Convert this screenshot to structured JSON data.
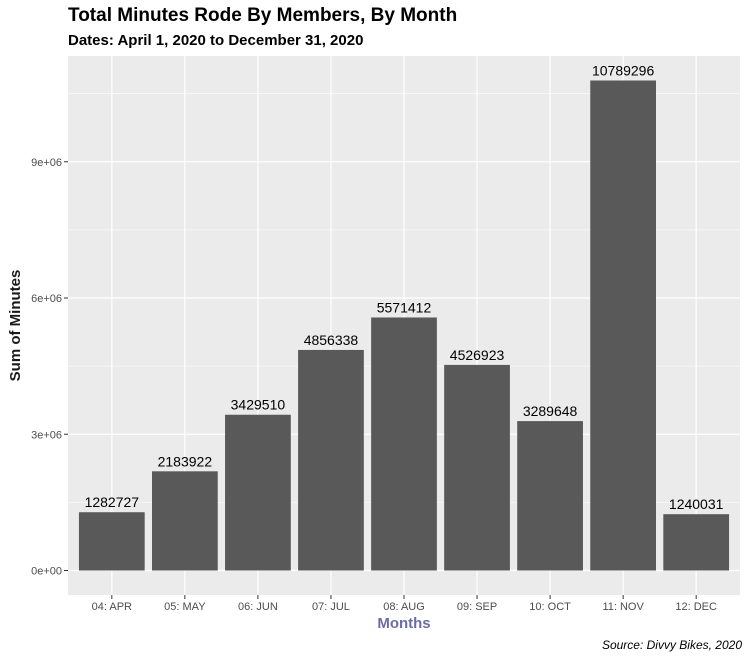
{
  "chart_data": {
    "type": "bar",
    "title": "Total Minutes Rode By Members, By Month",
    "subtitle": "Dates: April 1, 2020 to December 31, 2020",
    "caption": "Source: Divvy Bikes, 2020",
    "xlabel": "Months",
    "ylabel": "Sum of Minutes",
    "categories": [
      "04: APR",
      "05: MAY",
      "06: JUN",
      "07: JUL",
      "08: AUG",
      "09: SEP",
      "10: OCT",
      "11: NOV",
      "12: DEC"
    ],
    "values": [
      1282727,
      2183922,
      3429510,
      4856338,
      5571412,
      4526923,
      3289648,
      10789296,
      1240031
    ],
    "data_labels": [
      "1282727",
      "2183922",
      "3429510",
      "4856338",
      "5571412",
      "4526923",
      "3289648",
      "10789296",
      "1240031"
    ],
    "yticks": [
      0,
      3000000,
      6000000,
      9000000
    ],
    "ytick_labels": [
      "0e+00",
      "3e+06",
      "6e+06",
      "9e+06"
    ],
    "ylim": [
      -539465,
      11328761
    ],
    "grid": true,
    "colors": {
      "bar": "#595959",
      "panel": "#ebebeb",
      "grid": "#ffffff",
      "xlabel": "#6b6ba8"
    }
  }
}
